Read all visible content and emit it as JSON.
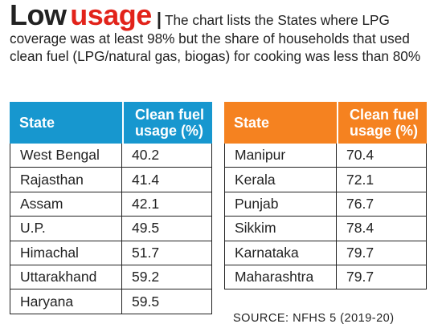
{
  "headline": {
    "title_part1": "Low",
    "title_part2": "usage",
    "separator": "|",
    "deck": "The chart lists the States where LPG coverage was at least 98% but the share of households that used clean fuel (LPG/natural gas, biogas) for cooking was less than 80%"
  },
  "colors": {
    "left_header": "#1797cf",
    "right_header": "#f58220",
    "title_accent": "#e2231a"
  },
  "chart_data": {
    "type": "table",
    "columns": [
      "State",
      "Clean fuel usage (%)"
    ],
    "tables": [
      {
        "header_color": "#1797cf",
        "header": {
          "state": "State",
          "value": "Clean fuel usage (%)"
        },
        "rows": [
          {
            "state": "West Bengal",
            "value": "40.2"
          },
          {
            "state": "Rajasthan",
            "value": "41.4"
          },
          {
            "state": "Assam",
            "value": "42.1"
          },
          {
            "state": "U.P.",
            "value": "49.5"
          },
          {
            "state": "Himachal",
            "value": "51.7"
          },
          {
            "state": "Uttarakhand",
            "value": "59.2"
          },
          {
            "state": "Haryana",
            "value": "59.5"
          }
        ]
      },
      {
        "header_color": "#f58220",
        "header": {
          "state": "State",
          "value": "Clean fuel usage (%)"
        },
        "rows": [
          {
            "state": "Manipur",
            "value": "70.4"
          },
          {
            "state": "Kerala",
            "value": "72.1"
          },
          {
            "state": "Punjab",
            "value": "76.7"
          },
          {
            "state": "Sikkim",
            "value": "78.4"
          },
          {
            "state": "Karnataka",
            "value": "79.7"
          },
          {
            "state": "Maharashtra",
            "value": "79.7"
          }
        ]
      }
    ]
  },
  "source": "SOURCE: NFHS 5 (2019-20)"
}
